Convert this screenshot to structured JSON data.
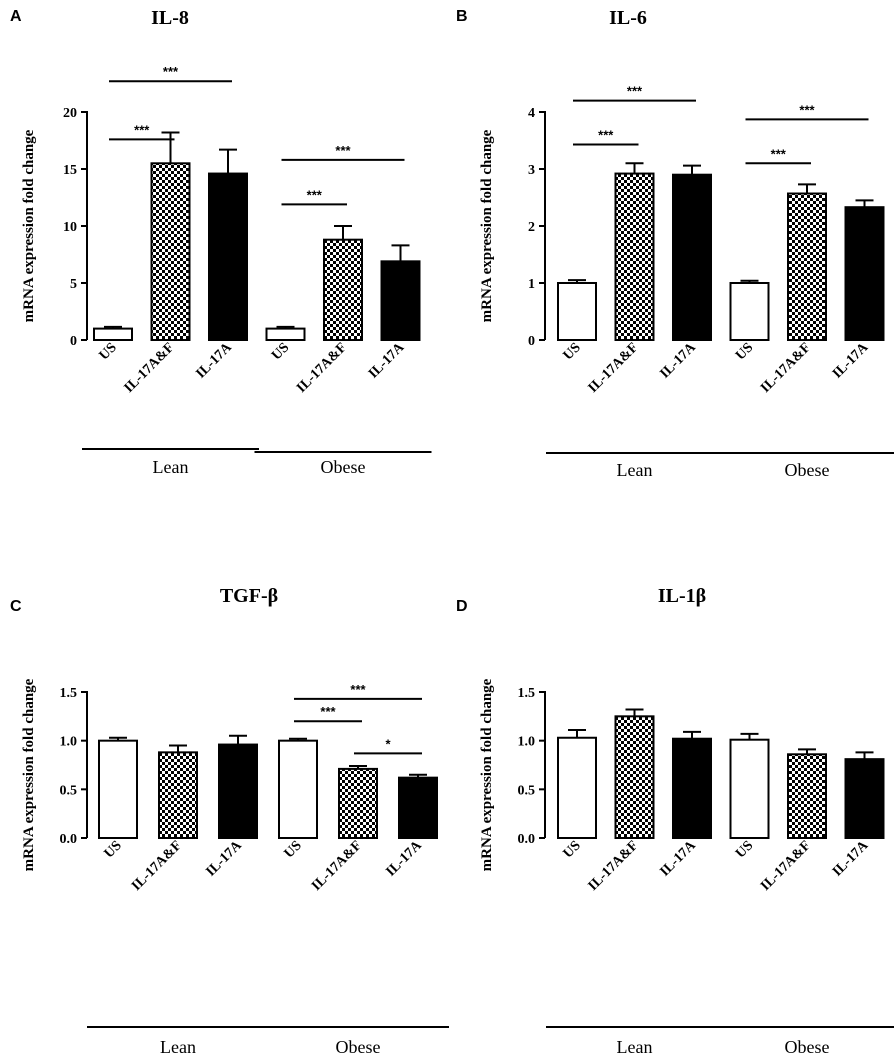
{
  "colors": {
    "ink": "#000000",
    "fill_us": "#ffffff",
    "fill_af": "checker",
    "fill_a": "#000000"
  },
  "chart_data": [
    {
      "type": "bar",
      "panel": "A",
      "title": "IL-8",
      "ylabel": "mRNA expression fold change",
      "xlabel": "",
      "ylim": [
        0,
        20
      ],
      "yticks": [
        0,
        5,
        10,
        15,
        20
      ],
      "yticklabels": [
        "0",
        "5",
        "10",
        "15",
        "20"
      ],
      "categories": [
        "US",
        "IL-17A&F",
        "IL-17A",
        "US",
        "IL-17A&F",
        "IL-17A"
      ],
      "fills": [
        "white",
        "checker",
        "black",
        "white",
        "checker",
        "black"
      ],
      "values": [
        1.0,
        15.5,
        14.6,
        1.0,
        8.8,
        6.9
      ],
      "errors": [
        0.15,
        2.7,
        2.1,
        0.15,
        1.2,
        1.4
      ],
      "groups": [
        {
          "label": "Lean",
          "from": 0,
          "to": 2
        },
        {
          "label": "Obese",
          "from": 3,
          "to": 5
        }
      ],
      "significance": [
        {
          "from": 0,
          "to": 1,
          "label": "***",
          "y": 17.6
        },
        {
          "from": 0,
          "to": 2,
          "label": "***",
          "y": 22.7
        },
        {
          "from": 3,
          "to": 4,
          "label": "***",
          "y": 11.9
        },
        {
          "from": 3,
          "to": 5,
          "label": "***",
          "y": 15.8
        }
      ]
    },
    {
      "type": "bar",
      "panel": "B",
      "title": "IL-6",
      "ylabel": "mRNA expression fold change",
      "xlabel": "",
      "ylim": [
        0,
        4
      ],
      "yticks": [
        0,
        1,
        2,
        3,
        4
      ],
      "yticklabels": [
        "0",
        "1",
        "2",
        "3",
        "4"
      ],
      "categories": [
        "US",
        "IL-17A&F",
        "IL-17A",
        "US",
        "IL-17A&F",
        "IL-17A"
      ],
      "fills": [
        "white",
        "checker",
        "black",
        "white",
        "checker",
        "black"
      ],
      "values": [
        1.0,
        2.92,
        2.9,
        1.0,
        2.57,
        2.33
      ],
      "errors": [
        0.05,
        0.18,
        0.16,
        0.04,
        0.16,
        0.12
      ],
      "groups": [
        {
          "label": "Lean",
          "from": 0,
          "to": 2
        },
        {
          "label": "Obese",
          "from": 3,
          "to": 5
        }
      ],
      "significance": [
        {
          "from": 0,
          "to": 1,
          "label": "***",
          "y": 3.43
        },
        {
          "from": 0,
          "to": 2,
          "label": "***",
          "y": 4.2
        },
        {
          "from": 3,
          "to": 4,
          "label": "***",
          "y": 3.1
        },
        {
          "from": 3,
          "to": 5,
          "label": "***",
          "y": 3.87
        }
      ]
    },
    {
      "type": "bar",
      "panel": "C",
      "title": "TGF-β",
      "ylabel": "mRNA expression fold change",
      "xlabel": "",
      "ylim": [
        0,
        1.5
      ],
      "yticks": [
        0,
        0.5,
        1.0,
        1.5
      ],
      "yticklabels": [
        "0.0",
        "0.5",
        "1.0",
        "1.5"
      ],
      "categories": [
        "US",
        "IL-17A&F",
        "IL-17A",
        "US",
        "IL-17A&F",
        "IL-17A"
      ],
      "fills": [
        "white",
        "checker",
        "black",
        "white",
        "checker",
        "black"
      ],
      "values": [
        1.0,
        0.88,
        0.96,
        1.0,
        0.71,
        0.62
      ],
      "errors": [
        0.03,
        0.07,
        0.09,
        0.02,
        0.03,
        0.03
      ],
      "groups": [
        {
          "label": "Lean",
          "from": 0,
          "to": 2
        },
        {
          "label": "Obese",
          "from": 3,
          "to": 5
        }
      ],
      "significance": [
        {
          "from": 3,
          "to": 4,
          "label": "***",
          "y": 1.2
        },
        {
          "from": 3,
          "to": 5,
          "label": "***",
          "y": 1.43
        },
        {
          "from": 4,
          "to": 5,
          "label": "*",
          "y": 0.87
        }
      ]
    },
    {
      "type": "bar",
      "panel": "D",
      "title": "IL-1β",
      "ylabel": "mRNA expression fold change",
      "xlabel": "",
      "ylim": [
        0,
        1.5
      ],
      "yticks": [
        0,
        0.5,
        1.0,
        1.5
      ],
      "yticklabels": [
        "0.0",
        "0.5",
        "1.0",
        "1.5"
      ],
      "categories": [
        "US",
        "IL-17A&F",
        "IL-17A",
        "US",
        "IL-17A&F",
        "IL-17A"
      ],
      "fills": [
        "white",
        "checker",
        "black",
        "white",
        "checker",
        "black"
      ],
      "values": [
        1.03,
        1.25,
        1.02,
        1.01,
        0.86,
        0.81
      ],
      "errors": [
        0.08,
        0.07,
        0.07,
        0.06,
        0.05,
        0.07
      ],
      "groups": [
        {
          "label": "Lean",
          "from": 0,
          "to": 2
        },
        {
          "label": "Obese",
          "from": 3,
          "to": 5
        }
      ],
      "significance": []
    }
  ]
}
